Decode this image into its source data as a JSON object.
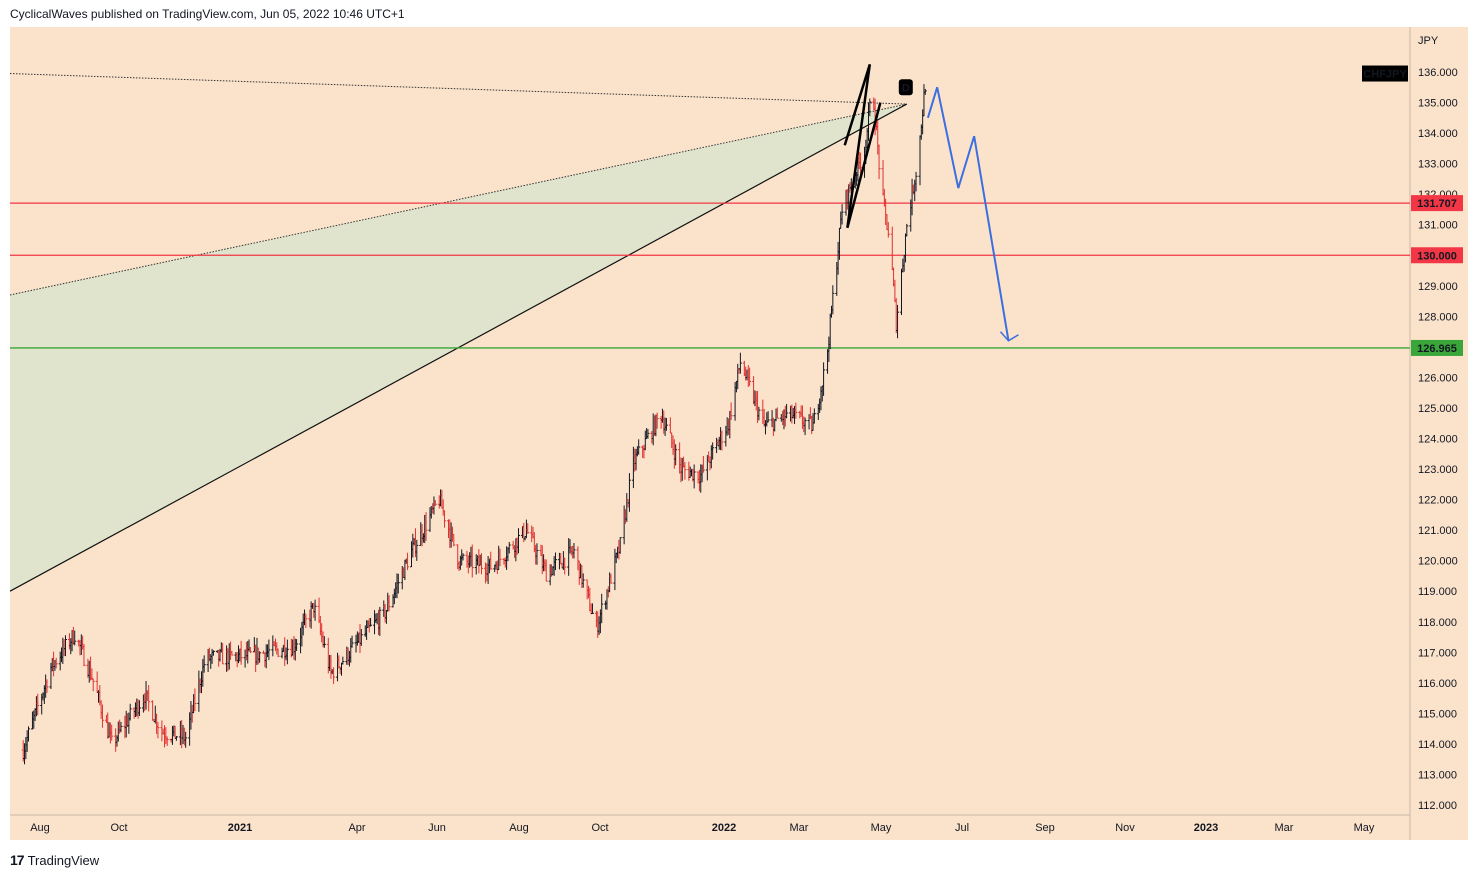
{
  "header": {
    "text": "CyclicalWaves published on TradingView.com, Jun 05, 2022 10:46 UTC+1"
  },
  "footer": {
    "logo": "17",
    "brand": "TradingView"
  },
  "colors": {
    "background": "#fbe3cb",
    "up": "#131722",
    "down": "#e03030",
    "resistance": "#f23645",
    "support": "#3aa63a",
    "projection": "#3b6fe0",
    "wedge_fill": "#dde3cc"
  },
  "chart_data": {
    "type": "candlestick",
    "symbol": "CHFJPY",
    "currency_label": "JPY",
    "y_ticks": [
      "136.000",
      "135.000",
      "134.000",
      "133.000",
      "132.000",
      "131.000",
      "130.000",
      "129.000",
      "128.000",
      "127.000",
      "126.000",
      "125.000",
      "124.000",
      "123.000",
      "122.000",
      "121.000",
      "120.000",
      "119.000",
      "118.000",
      "117.000",
      "116.000",
      "115.000",
      "114.000",
      "113.000",
      "112.000"
    ],
    "ylim": [
      112,
      136
    ],
    "x_ticks": [
      {
        "label": "Aug",
        "bold": false
      },
      {
        "label": "Oct",
        "bold": false
      },
      {
        "label": "2021",
        "bold": true
      },
      {
        "label": "Apr",
        "bold": false
      },
      {
        "label": "Jun",
        "bold": false
      },
      {
        "label": "Aug",
        "bold": false
      },
      {
        "label": "Oct",
        "bold": false
      },
      {
        "label": "2022",
        "bold": true
      },
      {
        "label": "Mar",
        "bold": false
      },
      {
        "label": "May",
        "bold": false
      },
      {
        "label": "Jul",
        "bold": false
      },
      {
        "label": "Sep",
        "bold": false
      },
      {
        "label": "Nov",
        "bold": false
      },
      {
        "label": "2023",
        "bold": true
      },
      {
        "label": "Mar",
        "bold": false
      },
      {
        "label": "May",
        "bold": false
      }
    ],
    "levels": [
      {
        "label": "131.707",
        "value": 131.707,
        "color": "#f23645"
      },
      {
        "label": "130.000",
        "value": 130.0,
        "color": "#f23645"
      },
      {
        "label": "126.965",
        "value": 126.965,
        "color": "#3aa63a"
      }
    ],
    "price_path": [
      {
        "date": "2020-07-20",
        "price": 113.8
      },
      {
        "date": "2020-08-10",
        "price": 116.5
      },
      {
        "date": "2020-08-28",
        "price": 117.6
      },
      {
        "date": "2020-09-10",
        "price": 116.2
      },
      {
        "date": "2020-09-25",
        "price": 114.0
      },
      {
        "date": "2020-10-20",
        "price": 115.6
      },
      {
        "date": "2020-11-02",
        "price": 114.4
      },
      {
        "date": "2020-11-20",
        "price": 114.2
      },
      {
        "date": "2020-12-05",
        "price": 116.8
      },
      {
        "date": "2021-01-10",
        "price": 116.9
      },
      {
        "date": "2021-02-10",
        "price": 117.2
      },
      {
        "date": "2021-02-25",
        "price": 118.5
      },
      {
        "date": "2021-03-10",
        "price": 116.3
      },
      {
        "date": "2021-04-01",
        "price": 117.4
      },
      {
        "date": "2021-04-20",
        "price": 118.3
      },
      {
        "date": "2021-05-10",
        "price": 120.3
      },
      {
        "date": "2021-05-31",
        "price": 122.0
      },
      {
        "date": "2021-06-15",
        "price": 120.0
      },
      {
        "date": "2021-07-10",
        "price": 119.8
      },
      {
        "date": "2021-08-05",
        "price": 121.0
      },
      {
        "date": "2021-08-20",
        "price": 119.6
      },
      {
        "date": "2021-09-10",
        "price": 120.3
      },
      {
        "date": "2021-09-27",
        "price": 117.8
      },
      {
        "date": "2021-10-15",
        "price": 120.5
      },
      {
        "date": "2021-10-25",
        "price": 123.2
      },
      {
        "date": "2021-11-15",
        "price": 124.8
      },
      {
        "date": "2021-11-30",
        "price": 123.0
      },
      {
        "date": "2021-12-15",
        "price": 122.8
      },
      {
        "date": "2022-01-05",
        "price": 124.5
      },
      {
        "date": "2022-01-14",
        "price": 126.5
      },
      {
        "date": "2022-02-01",
        "price": 124.4
      },
      {
        "date": "2022-02-20",
        "price": 124.8
      },
      {
        "date": "2022-03-10",
        "price": 124.4
      },
      {
        "date": "2022-03-20",
        "price": 126.5
      },
      {
        "date": "2022-04-01",
        "price": 131.5
      },
      {
        "date": "2022-04-10",
        "price": 132.6
      },
      {
        "date": "2022-04-18",
        "price": 133.4
      },
      {
        "date": "2022-04-24",
        "price": 135.5
      },
      {
        "date": "2022-05-01",
        "price": 132.0
      },
      {
        "date": "2022-05-07",
        "price": 130.5
      },
      {
        "date": "2022-05-12",
        "price": 127.8
      },
      {
        "date": "2022-05-20",
        "price": 131.0
      },
      {
        "date": "2022-05-28",
        "price": 133.0
      },
      {
        "date": "2022-06-03",
        "price": 135.6
      }
    ],
    "projection_path": [
      {
        "date": "2022-06-05",
        "price": 134.5
      },
      {
        "date": "2022-06-12",
        "price": 135.5
      },
      {
        "date": "2022-06-28",
        "price": 132.2
      },
      {
        "date": "2022-07-10",
        "price": 133.9
      },
      {
        "date": "2022-08-05",
        "price": 127.2
      }
    ],
    "pattern_marker": "D",
    "x_range": [
      "2020-07-10",
      "2023-06-05"
    ]
  }
}
